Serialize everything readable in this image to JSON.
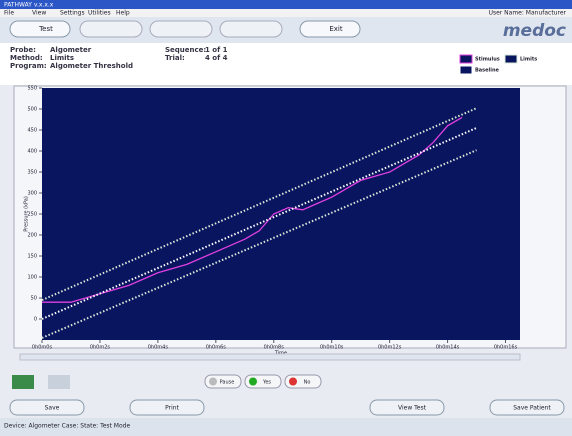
{
  "window": {
    "title": "PATHWAY v.x.x.x",
    "user": "User Name: Manufacturer"
  },
  "menu": [
    "File",
    "View",
    "Settings",
    "Utilities",
    "Help"
  ],
  "toolbar": [
    "Test",
    "Exit"
  ],
  "logo": "medoc",
  "info": [
    [
      "Probe:",
      "Algometer"
    ],
    [
      "Method:",
      "Limits"
    ],
    [
      "Program:",
      "Algometer Threshold"
    ],
    [
      "Sequence:",
      "1 of 1"
    ],
    [
      "Trial:",
      "4 of 4"
    ]
  ],
  "chart_data": {
    "type": "line",
    "x_label": "Time",
    "y_label": "Pressure (kPa)",
    "xlim": [
      0,
      16.5
    ],
    "ylim": [
      -50,
      550
    ],
    "xticks": [
      {
        "value": 0,
        "label": "0h0m0s"
      },
      {
        "value": 2,
        "label": "0h0m2s"
      },
      {
        "value": 4,
        "label": "0h0m4s"
      },
      {
        "value": 6,
        "label": "0h0m6s"
      },
      {
        "value": 8,
        "label": "0h0m8s"
      },
      {
        "value": 10,
        "label": "0h0m10s"
      },
      {
        "value": 12,
        "label": "0h0m12s"
      },
      {
        "value": 14,
        "label": "0h0m14s"
      },
      {
        "value": 16,
        "label": "0h0m16s"
      }
    ],
    "yticks": [
      0,
      50,
      100,
      150,
      200,
      250,
      300,
      350,
      400,
      450,
      500,
      550
    ],
    "series": [
      {
        "name": "Stimulus",
        "color": "#e040e0",
        "x": [
          0,
          1,
          2,
          3,
          4,
          5,
          6,
          7,
          7.5,
          8,
          8.5,
          9,
          9.5,
          10,
          11,
          12,
          12.5,
          13,
          13.5,
          14,
          14.5
        ],
        "values": [
          40,
          40,
          60,
          80,
          110,
          130,
          160,
          190,
          210,
          250,
          265,
          260,
          275,
          290,
          330,
          350,
          370,
          390,
          420,
          460,
          480
        ]
      },
      {
        "name": "Limits",
        "color": "#d8e8d8",
        "x": [
          0,
          15
        ],
        "values": [
          45,
          502
        ],
        "lower": [
          -45,
          402
        ]
      },
      {
        "name": "Baseline",
        "color": "#ffffff",
        "x": [
          0,
          15
        ],
        "values": [
          0,
          455
        ]
      }
    ]
  },
  "controls": [
    "Pause",
    "Yes",
    "No"
  ],
  "actions": [
    "Save",
    "Print",
    "View Test",
    "Save Patient"
  ],
  "status": "Device: Algometer   Case:   State: Test Mode"
}
